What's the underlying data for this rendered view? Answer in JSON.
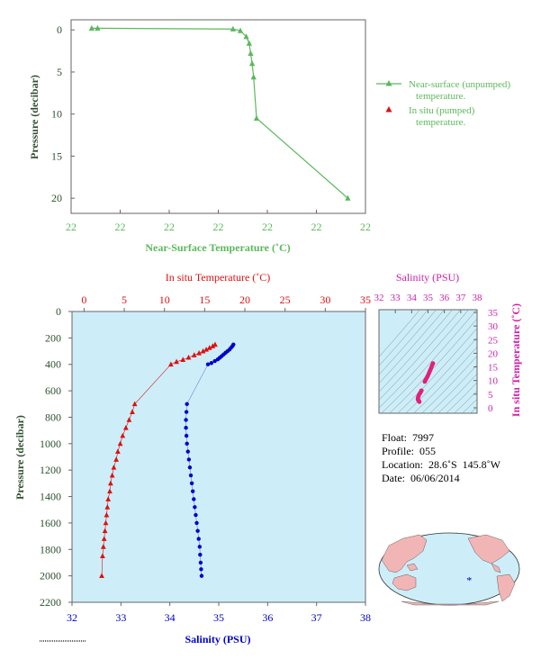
{
  "colors": {
    "green": "#5cb85c",
    "axis_dark": "#2f4f2f",
    "red": "#dd1111",
    "blue": "#0000cc",
    "magenta": "#cc22aa",
    "panel_bg": "#cdeef8",
    "land": "#f2b5b5",
    "ocean": "#cdeef8"
  },
  "chart_data": [
    {
      "type": "line",
      "id": "near-surface",
      "xlabel": "Near-Surface Temperature (˚C)",
      "ylabel": "Pressure (decibar)",
      "x_tick_labels": [
        "22",
        "22",
        "22",
        "22",
        "22",
        "22",
        "22"
      ],
      "x_tick_count": 7,
      "ylim": [
        21.8,
        -1.2
      ],
      "yticks": [
        0,
        5,
        10,
        15,
        20
      ],
      "legend": {
        "placement": "right",
        "entries": [
          {
            "label_line1": "Near-surface (unpumped)",
            "label_line2": "temperature.",
            "marker": "line-triangle"
          },
          {
            "label_line1": "In situ (pumped)",
            "label_line2": "temperature.",
            "marker": "triangle"
          }
        ]
      },
      "series": [
        {
          "name": "Near-surface (unpumped) temperature.",
          "relative_x": [
            0.07,
            0.09,
            0.55,
            0.575,
            0.595,
            0.605,
            0.61,
            0.615,
            0.62,
            0.63,
            0.94
          ],
          "pressure": [
            -0.2,
            -0.2,
            -0.1,
            0.1,
            0.8,
            1.6,
            2.8,
            4.0,
            5.6,
            10.5,
            20.0
          ]
        }
      ]
    },
    {
      "type": "scatter",
      "id": "profile",
      "x_top_label": "In situ Temperature (˚C)",
      "x_top_ticks": [
        0,
        5,
        10,
        15,
        20,
        25,
        30,
        35
      ],
      "xlim_top": [
        -1.5,
        35
      ],
      "x_bottom_label": "Salinity (PSU)",
      "x_bottom_ticks": [
        32,
        33,
        34,
        35,
        36,
        37,
        38
      ],
      "xlim_bottom": [
        32,
        38
      ],
      "ylabel": "Pressure (decibar)",
      "yticks": [
        0,
        200,
        400,
        600,
        800,
        1000,
        1200,
        1400,
        1600,
        1800,
        2000,
        2200
      ],
      "ylim": [
        0,
        2200
      ],
      "series": [
        {
          "name": "In situ Temperature",
          "x": [
            16.3,
            16.0,
            15.6,
            15.2,
            14.8,
            14.3,
            13.7,
            13.0,
            12.3,
            11.5,
            10.8,
            6.3,
            6.0,
            5.6,
            5.2,
            4.8,
            4.5,
            4.2,
            4.0,
            3.7,
            3.5,
            3.3,
            3.2,
            3.0,
            2.9,
            2.8,
            2.7,
            2.6,
            2.5,
            2.4,
            2.3,
            2.2
          ],
          "y": [
            250,
            262,
            275,
            288,
            300,
            315,
            330,
            348,
            365,
            380,
            400,
            700,
            760,
            820,
            880,
            940,
            1000,
            1060,
            1120,
            1180,
            1240,
            1300,
            1360,
            1420,
            1480,
            1540,
            1600,
            1660,
            1720,
            1780,
            1850,
            2000
          ]
        },
        {
          "name": "Salinity",
          "x": [
            35.3,
            35.28,
            35.25,
            35.22,
            35.18,
            35.14,
            35.1,
            35.06,
            35.02,
            34.98,
            34.92,
            34.85,
            34.78,
            34.35,
            34.34,
            34.33,
            34.33,
            34.34,
            34.35,
            34.37,
            34.39,
            34.41,
            34.43,
            34.45,
            34.47,
            34.49,
            34.51,
            34.53,
            34.55,
            34.57,
            34.59,
            34.61,
            34.62,
            34.63,
            34.64,
            34.65
          ],
          "y": [
            250,
            262,
            275,
            288,
            300,
            312,
            325,
            338,
            350,
            362,
            375,
            390,
            400,
            700,
            760,
            820,
            880,
            940,
            1000,
            1060,
            1120,
            1180,
            1240,
            1300,
            1360,
            1420,
            1480,
            1540,
            1600,
            1660,
            1720,
            1780,
            1840,
            1900,
            1950,
            2000
          ]
        }
      ]
    },
    {
      "type": "scatter",
      "id": "ts-diagram",
      "x_label": "Salinity (PSU)",
      "x_ticks": [
        32,
        33,
        34,
        35,
        36,
        37,
        38
      ],
      "xlim": [
        32,
        38
      ],
      "y_label": "In situ Temperature (˚C)",
      "y_ticks": [
        0,
        5,
        10,
        15,
        20,
        25,
        30,
        35
      ],
      "ylim": [
        -2,
        36
      ],
      "series": [
        {
          "name": "T-S points",
          "x": [
            35.3,
            35.25,
            35.2,
            35.15,
            35.1,
            35.05,
            35.0,
            34.95,
            34.9,
            34.85,
            34.8,
            34.6,
            34.55,
            34.5,
            34.45,
            34.42,
            34.4,
            34.38,
            34.38,
            34.4,
            34.43,
            34.47
          ],
          "y": [
            16.3,
            15.6,
            14.8,
            14.0,
            13.3,
            12.6,
            11.9,
            11.3,
            10.8,
            10.2,
            9.6,
            6.3,
            5.8,
            5.3,
            4.8,
            4.3,
            3.9,
            3.5,
            3.1,
            2.8,
            2.5,
            2.2
          ]
        }
      ]
    }
  ],
  "info": {
    "float": "Float:  7997",
    "profile": "Profile:  055",
    "location": "Location:  28.6˚S  145.8˚W",
    "date": "Date:  06/06/2014"
  },
  "map": {
    "marker": "*",
    "float_lat": -28.6,
    "float_lon": -145.8
  }
}
